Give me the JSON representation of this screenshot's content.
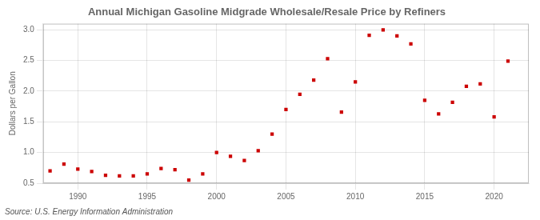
{
  "chart_data": {
    "type": "scatter",
    "title": "Annual Michigan Gasoline Midgrade Wholesale/Resale Price by Refiners",
    "y_label": "Dollars per Gallon",
    "annotations": [
      "Source: U.S. Energy Information Administration"
    ],
    "x": [
      1988,
      1989,
      1990,
      1991,
      1992,
      1993,
      1994,
      1995,
      1996,
      1997,
      1998,
      1999,
      2000,
      2001,
      2002,
      2003,
      2004,
      2005,
      2006,
      2007,
      2008,
      2009,
      2010,
      2011,
      2012,
      2013,
      2014,
      2015,
      2016,
      2017,
      2018,
      2019,
      2020,
      2021
    ],
    "values": [
      0.7,
      0.81,
      0.73,
      0.69,
      0.63,
      0.62,
      0.62,
      0.65,
      0.74,
      0.72,
      0.55,
      0.65,
      1.0,
      0.94,
      0.87,
      1.03,
      1.3,
      1.7,
      1.95,
      2.18,
      2.53,
      1.66,
      2.15,
      2.91,
      3.0,
      2.9,
      2.77,
      1.85,
      1.63,
      1.82,
      2.08,
      2.12,
      1.58,
      2.49
    ],
    "color": "#cc0000",
    "marker": "square",
    "xlim": [
      1987.5,
      2022.5
    ],
    "xticks": [
      1990,
      1995,
      2000,
      2005,
      2010,
      2015,
      2020
    ],
    "ylim": [
      0.5,
      3.1
    ],
    "yticks": [
      0.5,
      {
        "value": 1.0,
        "label": "1.0"
      },
      1.5,
      {
        "value": 2.0,
        "label": "2.0"
      },
      2.5,
      {
        "value": 3.0,
        "label": "3.0"
      }
    ],
    "grid": true
  }
}
